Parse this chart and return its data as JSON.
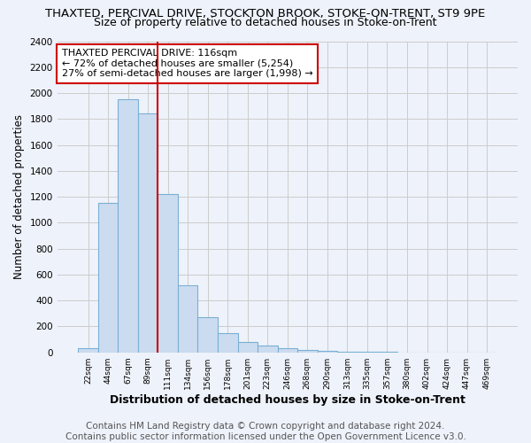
{
  "title1": "THAXTED, PERCIVAL DRIVE, STOCKTON BROOK, STOKE-ON-TRENT, ST9 9PE",
  "title2": "Size of property relative to detached houses in Stoke-on-Trent",
  "xlabel": "Distribution of detached houses by size in Stoke-on-Trent",
  "ylabel": "Number of detached properties",
  "annotation_line1": "THAXTED PERCIVAL DRIVE: 116sqm",
  "annotation_line2": "← 72% of detached houses are smaller (5,254)",
  "annotation_line3": "27% of semi-detached houses are larger (1,998) →",
  "footer1": "Contains HM Land Registry data © Crown copyright and database right 2024.",
  "footer2": "Contains public sector information licensed under the Open Government Licence v3.0.",
  "cat_labels": [
    "22sqm",
    "44sqm",
    "67sqm",
    "89sqm",
    "111sqm",
    "134sqm",
    "156sqm",
    "178sqm",
    "201sqm",
    "223sqm",
    "246sqm",
    "268sqm",
    "290sqm",
    "313sqm",
    "335sqm",
    "357sqm",
    "380sqm",
    "402sqm",
    "424sqm",
    "447sqm",
    "469sqm"
  ],
  "values": [
    30,
    1150,
    1950,
    1840,
    1220,
    520,
    270,
    150,
    80,
    50,
    35,
    20,
    10,
    5,
    3,
    2,
    1,
    0,
    0,
    0,
    0
  ],
  "bar_color": "#ccdcf0",
  "bar_edge_color": "#7aafd4",
  "vline_index": 4,
  "vline_color": "#cc0000",
  "annotation_box_color": "#ffffff",
  "annotation_box_edge": "#cc0000",
  "ylim": [
    0,
    2400
  ],
  "yticks": [
    0,
    200,
    400,
    600,
    800,
    1000,
    1200,
    1400,
    1600,
    1800,
    2000,
    2200,
    2400
  ],
  "grid_color": "#cccccc",
  "bg_color": "#eef2fa",
  "title1_fontsize": 9.5,
  "title2_fontsize": 9,
  "footer_fontsize": 7.5,
  "xlabel_fontsize": 9,
  "ylabel_fontsize": 8.5,
  "annot_fontsize": 8
}
